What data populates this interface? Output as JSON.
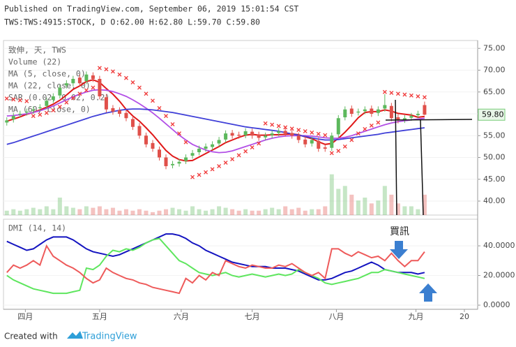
{
  "header": {
    "published": "Published on TradingView.com, September 06, 2019 15:01:54 CST",
    "symbol": "TWS:TWS:4915:STOCK, D O:62.00 H:62.80 L:59.70 C:59.80"
  },
  "footer": {
    "created": "Created with",
    "brand": "TradingView"
  },
  "chart_data": [
    {
      "type": "candlestick",
      "title": "致伸, 天, TWS",
      "categories": [
        null,
        null,
        null,
        null,
        null,
        null,
        null,
        null,
        null,
        null,
        null,
        null,
        null,
        null,
        null,
        null,
        null,
        null,
        null,
        null,
        null,
        null,
        null,
        null,
        null,
        null,
        null,
        null,
        null,
        null,
        null,
        null,
        null,
        null,
        null,
        null,
        null,
        null,
        null,
        null,
        null,
        null,
        null,
        null,
        null,
        null,
        null,
        null,
        null,
        null,
        null,
        null,
        null,
        null,
        null,
        null,
        null,
        null,
        null,
        null,
        null,
        null,
        null,
        null
      ],
      "open": [
        58,
        58.7,
        59.8,
        60.3,
        60.7,
        61.3,
        61.8,
        63.2,
        64.2,
        66.5,
        67,
        68.3,
        67.5,
        68.8,
        68,
        63.8,
        61.3,
        60.8,
        60.2,
        58.8,
        57.2,
        55,
        53.3,
        51.8,
        50,
        48.2,
        48.6,
        49.2,
        50.4,
        51.2,
        52,
        52.4,
        53.2,
        54.1,
        55.6,
        55.2,
        55.1,
        55.9,
        55.2,
        54.6,
        55.1,
        55.6,
        56.1,
        55.6,
        55,
        54.1,
        53.2,
        53.8,
        52.3,
        52.2,
        55.3,
        59.2,
        61.2,
        60.3,
        60.6,
        61.2,
        60.2,
        61.2,
        61.8,
        59.2,
        58.6,
        59.1,
        59.7,
        62
      ],
      "high": [
        59.2,
        60.2,
        60.7,
        61.2,
        61.7,
        62.2,
        63.7,
        64.7,
        66.7,
        67.7,
        68.7,
        69,
        69.7,
        69.5,
        68.7,
        64.5,
        62,
        61.5,
        60.9,
        59.5,
        57.9,
        55.7,
        54,
        52.5,
        50.7,
        49.2,
        49.7,
        50.7,
        51.7,
        52.7,
        53.2,
        53.7,
        54.7,
        56.2,
        56.3,
        55.9,
        56.7,
        56.6,
        55.9,
        55.7,
        56.2,
        56.7,
        56.8,
        56.3,
        55.7,
        54.8,
        54.7,
        54.5,
        53,
        55.7,
        59.7,
        61.7,
        61.9,
        61.2,
        61.7,
        61.9,
        61.7,
        64.5,
        62.5,
        59.9,
        59.7,
        60.2,
        60.7,
        62.8
      ],
      "low": [
        57.3,
        58,
        59.1,
        59.6,
        60,
        60.6,
        61.1,
        62.5,
        63.5,
        65.8,
        66.3,
        66.3,
        66.8,
        67.3,
        63.3,
        60.3,
        59.8,
        59.3,
        58.3,
        56.3,
        54.3,
        52.3,
        51.3,
        49.3,
        47.3,
        47.5,
        47.9,
        48.5,
        49.7,
        50.5,
        51.3,
        51.7,
        52.5,
        53.4,
        54.3,
        54.3,
        54.4,
        54.3,
        53.8,
        53.9,
        54.4,
        54.9,
        54.8,
        54.3,
        53.3,
        52.3,
        52.5,
        51.3,
        51.3,
        51.5,
        54.6,
        58.5,
        59.3,
        59.6,
        59.9,
        59.3,
        59.5,
        60.5,
        58.3,
        57.8,
        57.9,
        58.4,
        59,
        59.7
      ],
      "close": [
        58.5,
        59.5,
        60,
        60.5,
        61,
        61.5,
        63,
        64,
        66,
        67,
        68,
        67,
        69,
        68,
        64,
        61,
        60.5,
        60,
        59,
        57,
        55,
        53,
        52,
        50,
        48,
        48.5,
        49,
        50,
        51,
        52,
        52.5,
        53,
        54,
        55.5,
        55,
        55,
        56,
        55,
        54.5,
        55,
        55.5,
        56,
        55.5,
        55,
        54,
        53,
        54,
        52,
        52,
        55,
        59,
        61,
        60,
        60.5,
        61,
        60,
        61,
        62,
        59,
        58.5,
        59,
        59.5,
        60,
        59.8
      ],
      "up_color": "#5cb85c",
      "down_color": "#e0504a",
      "volume": {
        "name": "Volume (22)",
        "ylim": [
          0,
          18
        ],
        "values": [
          1.5,
          2,
          1.5,
          2,
          2.5,
          2,
          3,
          2,
          6,
          3,
          2.5,
          2,
          3,
          2.5,
          3,
          2,
          2.5,
          1.5,
          2,
          1.5,
          2,
          1.5,
          1,
          1.5,
          2,
          2.5,
          2,
          1.5,
          3,
          2,
          1.5,
          2,
          3,
          2.5,
          2,
          1.5,
          2,
          1.5,
          1.5,
          2,
          2.5,
          2,
          3,
          2,
          2.5,
          1.5,
          2,
          2,
          3,
          14,
          9,
          10,
          7,
          5,
          6,
          4,
          5,
          10,
          7,
          4,
          3,
          3,
          2,
          7
        ]
      },
      "overlays": [
        {
          "name": "MA (5, close, 0)",
          "color": "#e01818",
          "values": [
            58.3,
            58.8,
            59.3,
            59.9,
            60.3,
            60.9,
            61.5,
            62.2,
            63.1,
            64.3,
            65.6,
            66.4,
            67.4,
            67.8,
            67.2,
            65.8,
            64.5,
            62.9,
            61,
            59.5,
            58.3,
            56.8,
            55.2,
            53.4,
            51.6,
            50.3,
            49.5,
            49.2,
            49.3,
            50.1,
            50.9,
            51.7,
            52.5,
            53.4,
            54,
            54.6,
            55.1,
            55.3,
            55.1,
            55.1,
            55.2,
            55.2,
            55.3,
            55.4,
            55.2,
            54.7,
            54.3,
            53.6,
            53,
            53.2,
            54.4,
            55.8,
            57.4,
            59.1,
            60.3,
            60.5,
            60.5,
            60.9,
            60.6,
            60.1,
            59.9,
            59.7,
            59.2,
            59.4
          ]
        },
        {
          "name": "MA (22, close, 0)",
          "color": "#b24fe6",
          "values": [
            59.5,
            59.6,
            59.8,
            60,
            60.3,
            60.7,
            61.2,
            61.8,
            62.5,
            63.2,
            63.9,
            64.5,
            65,
            65.4,
            65.5,
            65.4,
            65.1,
            64.6,
            64,
            63.2,
            62.3,
            61.3,
            60.2,
            59,
            57.7,
            56.4,
            55.1,
            54,
            53,
            52.3,
            51.7,
            51.3,
            51.1,
            51.2,
            51.5,
            52,
            52.5,
            53,
            53.5,
            54,
            54.4,
            54.7,
            54.9,
            55,
            55,
            55,
            54.9,
            54.7,
            54.5,
            54.4,
            54.4,
            54.6,
            55,
            55.5,
            56,
            56.5,
            57,
            57.5,
            57.9,
            58.2,
            58.4,
            58.6,
            58.8,
            59
          ]
        },
        {
          "name": "MA (60, close, 0)",
          "color": "#4040d8",
          "values": [
            53,
            53.4,
            53.9,
            54.4,
            54.9,
            55.4,
            55.9,
            56.4,
            56.9,
            57.4,
            57.9,
            58.4,
            58.9,
            59.4,
            59.8,
            60.2,
            60.5,
            60.8,
            61,
            61.1,
            61.1,
            61,
            60.9,
            60.7,
            60.5,
            60.3,
            60,
            59.7,
            59.4,
            59.1,
            58.8,
            58.5,
            58.2,
            57.9,
            57.6,
            57.3,
            57,
            56.8,
            56.6,
            56.4,
            56.2,
            56,
            55.7,
            55.4,
            55.1,
            54.8,
            54.5,
            54.2,
            54,
            54,
            54.1,
            54.3,
            54.5,
            54.7,
            54.9,
            55.1,
            55.3,
            55.6,
            55.8,
            56,
            56.2,
            56.4,
            56.6,
            56.8
          ]
        }
      ],
      "sar": {
        "name": "SAR (0.02, 0.02, 0.2)",
        "color": "#f03c3c",
        "values": [
          63.5,
          63.3,
          63.1,
          62.9,
          59.5,
          59.8,
          60.2,
          60.8,
          61.6,
          62.6,
          63.6,
          64.6,
          65.4,
          66,
          70.5,
          70.2,
          69.7,
          69,
          68.2,
          67.2,
          66,
          64.6,
          63,
          61.3,
          59.5,
          57.6,
          55.5,
          53.5,
          45.5,
          46,
          46.6,
          47.3,
          48,
          48.8,
          49.6,
          50.5,
          51.4,
          52.3,
          53.2,
          57.8,
          57.5,
          57.2,
          56.9,
          56.6,
          56.3,
          56,
          55.7,
          55.4,
          55.1,
          51,
          51.5,
          52.5,
          54,
          55.5,
          56.5,
          57.3,
          58,
          65,
          64.8,
          64.6,
          64.4,
          64.2,
          64,
          63.8
        ]
      },
      "last_price": {
        "value": 59.8,
        "label": "59.80"
      },
      "annotation": "買訊",
      "ylim": [
        36.8,
        76.8
      ],
      "yticks": [
        {
          "value": 40,
          "label": "40.00"
        },
        {
          "value": 45,
          "label": "45.00"
        },
        {
          "value": 50,
          "label": "50.00"
        },
        {
          "value": 55,
          "label": "55.00"
        },
        {
          "value": 60,
          "label": "60.00"
        },
        {
          "value": 65,
          "label": "65.00"
        },
        {
          "value": 70,
          "label": "70.00"
        },
        {
          "value": 75,
          "label": "75.00"
        }
      ],
      "xlim": [
        -0.5,
        71
      ],
      "xticks": [
        {
          "value": 2.8,
          "label": "四月"
        },
        {
          "value": 14,
          "label": "五月"
        },
        {
          "value": 26.3,
          "label": "六月"
        },
        {
          "value": 37,
          "label": "七月"
        },
        {
          "value": 49.7,
          "label": "八月"
        },
        {
          "value": 61.7,
          "label": "九月"
        },
        {
          "value": 69,
          "label": "20"
        }
      ]
    },
    {
      "type": "line",
      "title": "DMI (14, 14)",
      "series": [
        {
          "color": "#1414c0",
          "values": [
            43,
            41,
            39,
            37,
            38,
            41,
            44,
            46,
            46,
            46,
            44,
            41,
            38,
            36,
            35,
            34,
            33,
            34,
            36,
            38,
            40,
            42,
            44,
            46,
            48,
            48,
            47,
            45,
            42,
            40,
            37,
            35,
            33,
            31,
            29,
            28,
            27,
            26,
            26,
            26,
            25,
            25,
            25,
            24,
            23,
            21,
            19,
            17,
            17,
            18,
            20,
            22,
            23,
            25,
            27,
            29,
            27,
            24,
            23,
            22,
            22,
            22,
            21,
            22
          ]
        },
        {
          "color": "#5ee65e",
          "values": [
            20,
            17,
            15,
            13,
            11,
            10,
            9,
            8,
            8,
            8,
            9,
            10,
            25,
            24,
            27,
            33,
            37,
            36,
            38,
            37,
            39,
            42,
            44,
            45,
            40,
            35,
            30,
            28,
            25,
            22,
            21,
            20,
            21,
            22,
            20,
            19,
            20,
            21,
            20,
            19,
            20,
            21,
            20,
            21,
            24,
            22,
            20,
            18,
            15,
            14,
            15,
            16,
            17,
            18,
            20,
            22,
            22,
            24,
            23,
            22,
            21,
            20,
            19,
            18
          ]
        },
        {
          "color": "#ee5a5a",
          "values": [
            22,
            27,
            25,
            27,
            30,
            27,
            40,
            33,
            30,
            27,
            25,
            22,
            18,
            15,
            17,
            25,
            22,
            20,
            18,
            17,
            15,
            14,
            12,
            11,
            10,
            9,
            8,
            18,
            15,
            20,
            17,
            22,
            20,
            30,
            28,
            26,
            25,
            27,
            26,
            25,
            25,
            27,
            26,
            28,
            25,
            22,
            20,
            22,
            18,
            38,
            38,
            35,
            33,
            36,
            34,
            32,
            33,
            30,
            35,
            30,
            26,
            30,
            30,
            36
          ]
        }
      ],
      "ylim": [
        -2.8,
        57
      ],
      "yticks": [
        {
          "value": 0,
          "label": "0.0000"
        },
        {
          "value": 20,
          "label": "20.0000"
        },
        {
          "value": 40,
          "label": "40.0000"
        }
      ]
    }
  ]
}
